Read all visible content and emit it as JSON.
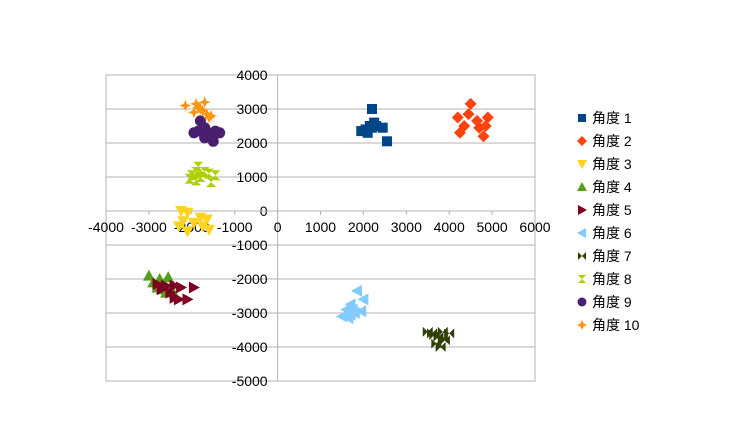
{
  "chart_data": {
    "type": "scatter",
    "title": "",
    "xlabel": "",
    "ylabel": "",
    "xlim": [
      -4000,
      6000
    ],
    "ylim": [
      -5000,
      4000
    ],
    "xticks": [
      -4000,
      -3000,
      -2000,
      -1000,
      0,
      1000,
      2000,
      3000,
      4000,
      5000,
      6000
    ],
    "yticks": [
      4000,
      3000,
      2000,
      1000,
      0,
      -1000,
      -2000,
      -3000,
      -4000,
      -5000
    ],
    "grid": "horizontal",
    "legend_position": "right",
    "series": [
      {
        "name": "角度 1",
        "marker": "square",
        "color": "#004586",
        "points": [
          [
            2200,
            3000
          ],
          [
            2150,
            2500
          ],
          [
            2250,
            2600
          ],
          [
            2050,
            2400
          ],
          [
            1950,
            2350
          ],
          [
            2100,
            2300
          ],
          [
            2300,
            2500
          ],
          [
            2450,
            2450
          ],
          [
            2200,
            2450
          ],
          [
            2550,
            2050
          ]
        ]
      },
      {
        "name": "角度 2",
        "marker": "diamond",
        "color": "#ff420e",
        "points": [
          [
            4500,
            3150
          ],
          [
            4200,
            2750
          ],
          [
            4350,
            2500
          ],
          [
            4700,
            2450
          ],
          [
            4900,
            2750
          ],
          [
            4250,
            2300
          ],
          [
            4800,
            2200
          ],
          [
            4650,
            2650
          ],
          [
            4450,
            2850
          ],
          [
            4850,
            2500
          ]
        ]
      },
      {
        "name": "角度 3",
        "marker": "triangle-down",
        "color": "#ffd320",
        "points": [
          [
            -2250,
            0
          ],
          [
            -2100,
            -50
          ],
          [
            -1800,
            -200
          ],
          [
            -1650,
            -250
          ],
          [
            -2300,
            -450
          ],
          [
            -1950,
            -350
          ],
          [
            -1750,
            -450
          ],
          [
            -2100,
            -600
          ],
          [
            -1600,
            -550
          ],
          [
            -2200,
            -300
          ]
        ]
      },
      {
        "name": "角度 4",
        "marker": "triangle-up",
        "color": "#579d1c",
        "points": [
          [
            -3000,
            -1900
          ],
          [
            -2750,
            -2000
          ],
          [
            -2550,
            -1950
          ],
          [
            -2650,
            -2150
          ],
          [
            -2800,
            -2250
          ],
          [
            -2500,
            -2250
          ],
          [
            -2450,
            -2350
          ],
          [
            -2900,
            -2100
          ],
          [
            -2700,
            -2300
          ],
          [
            -2600,
            -2400
          ]
        ]
      },
      {
        "name": "角度 5",
        "marker": "triangle-right",
        "color": "#7e0021",
        "points": [
          [
            -2800,
            -2150
          ],
          [
            -2600,
            -2200
          ],
          [
            -2400,
            -2200
          ],
          [
            -2250,
            -2250
          ],
          [
            -1950,
            -2250
          ],
          [
            -2400,
            -2550
          ],
          [
            -2300,
            -2600
          ],
          [
            -2100,
            -2600
          ],
          [
            -2500,
            -2400
          ],
          [
            -2700,
            -2300
          ]
        ]
      },
      {
        "name": "角度 6",
        "marker": "triangle-left",
        "color": "#83caff",
        "points": [
          [
            1850,
            -2350
          ],
          [
            2000,
            -2600
          ],
          [
            1700,
            -2750
          ],
          [
            1600,
            -2900
          ],
          [
            1750,
            -2900
          ],
          [
            1500,
            -3100
          ],
          [
            1650,
            -3150
          ],
          [
            1800,
            -3000
          ],
          [
            1950,
            -2950
          ],
          [
            1700,
            -3050
          ]
        ]
      },
      {
        "name": "角度 7",
        "marker": "bowtie",
        "color": "#314004",
        "points": [
          [
            3500,
            -3550
          ],
          [
            3650,
            -3650
          ],
          [
            3750,
            -3700
          ],
          [
            3850,
            -3550
          ],
          [
            4000,
            -3600
          ],
          [
            3700,
            -3900
          ],
          [
            3800,
            -4000
          ],
          [
            3900,
            -3800
          ],
          [
            3600,
            -3600
          ],
          [
            3850,
            -3750
          ]
        ]
      },
      {
        "name": "角度 8",
        "marker": "hourglass",
        "color": "#aecf00",
        "points": [
          [
            -1850,
            1300
          ],
          [
            -1900,
            1150
          ],
          [
            -2000,
            1050
          ],
          [
            -1800,
            1000
          ],
          [
            -1600,
            1100
          ],
          [
            -1450,
            1050
          ],
          [
            -1550,
            850
          ],
          [
            -2050,
            950
          ],
          [
            -1900,
            900
          ],
          [
            -1700,
            1150
          ]
        ]
      },
      {
        "name": "角度 9",
        "marker": "circle",
        "color": "#4b1f6f",
        "points": [
          [
            -1800,
            2650
          ],
          [
            -1700,
            2450
          ],
          [
            -1850,
            2350
          ],
          [
            -1950,
            2300
          ],
          [
            -1600,
            2300
          ],
          [
            -1450,
            2350
          ],
          [
            -1500,
            2200
          ],
          [
            -1350,
            2300
          ],
          [
            -1700,
            2150
          ],
          [
            -1500,
            2050
          ]
        ]
      },
      {
        "name": "角度 10",
        "marker": "star",
        "color": "#ff950e",
        "points": [
          [
            -2150,
            3100
          ],
          [
            -1850,
            3050
          ],
          [
            -1950,
            2900
          ],
          [
            -1700,
            3200
          ],
          [
            -1600,
            2750
          ],
          [
            -1800,
            3000
          ],
          [
            -1900,
            3150
          ],
          [
            -1650,
            2850
          ],
          [
            -1750,
            2950
          ],
          [
            -1550,
            2800
          ]
        ]
      }
    ]
  }
}
